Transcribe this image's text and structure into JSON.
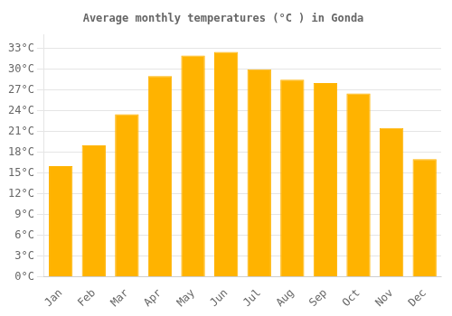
{
  "chart_data": {
    "type": "bar",
    "title": "Average monthly temperatures (°C ) in Gonda",
    "categories": [
      "Jan",
      "Feb",
      "Mar",
      "Apr",
      "May",
      "Jun",
      "Jul",
      "Aug",
      "Sep",
      "Oct",
      "Nov",
      "Dec"
    ],
    "values": [
      16,
      19,
      23.5,
      29,
      32,
      32.5,
      30,
      28.5,
      28,
      26.5,
      21.5,
      17
    ],
    "color": "#FFB300",
    "ylim": [
      0,
      35
    ],
    "yticks": [
      {
        "value": 0,
        "label": "0°C"
      },
      {
        "value": 3,
        "label": "3°C"
      },
      {
        "value": 6,
        "label": "6°C"
      },
      {
        "value": 9,
        "label": "9°C"
      },
      {
        "value": 12,
        "label": "12°C"
      },
      {
        "value": 15,
        "label": "15°C"
      },
      {
        "value": 18,
        "label": "18°C"
      },
      {
        "value": 21,
        "label": "21°C"
      },
      {
        "value": 24,
        "label": "24°C"
      },
      {
        "value": 27,
        "label": "27°C"
      },
      {
        "value": 30,
        "label": "30°C"
      },
      {
        "value": 33,
        "label": "33°C"
      }
    ],
    "grid": true
  }
}
